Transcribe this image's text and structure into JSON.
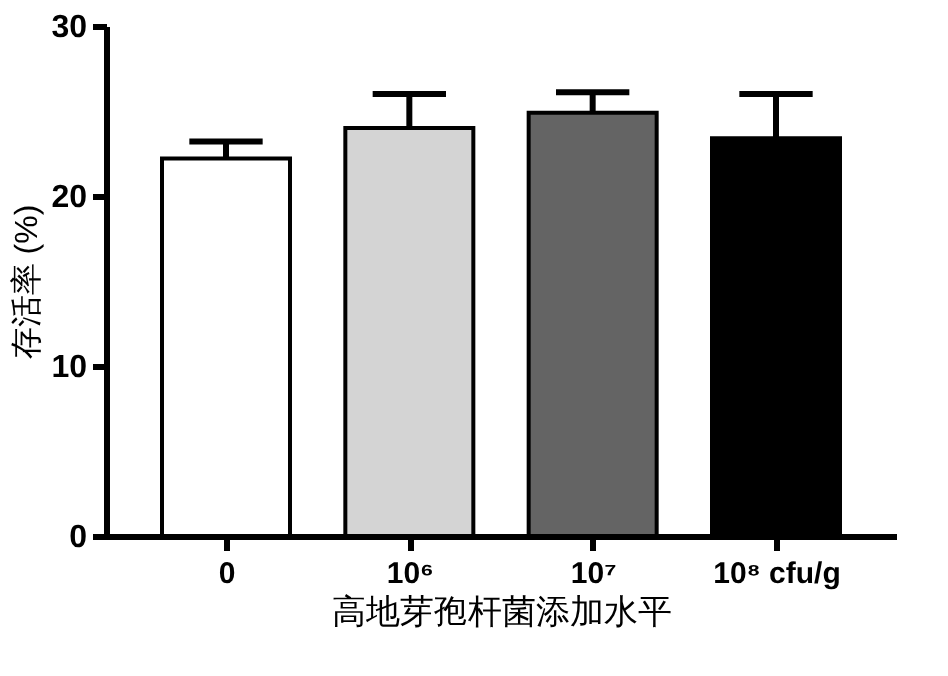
{
  "chart_data": {
    "type": "bar",
    "xlabel": "高地芽孢杆菌添加水平",
    "ylabel": "存活率 (%)",
    "categories": [
      "0",
      "10⁶",
      "10⁷",
      "10⁸ cfu/g"
    ],
    "values": [
      22.2,
      24.0,
      24.9,
      23.4
    ],
    "colors": [
      "#ffffff",
      "#d4d4d4",
      "#646464",
      "#000000"
    ],
    "errors": [
      [
        22.2,
        23.2
      ],
      [
        24.0,
        26.0
      ],
      [
        24.9,
        26.1
      ],
      [
        23.4,
        26.0
      ]
    ],
    "ylim": [
      0,
      30
    ],
    "yticks": [
      0,
      10,
      20,
      30
    ],
    "grid": false
  }
}
